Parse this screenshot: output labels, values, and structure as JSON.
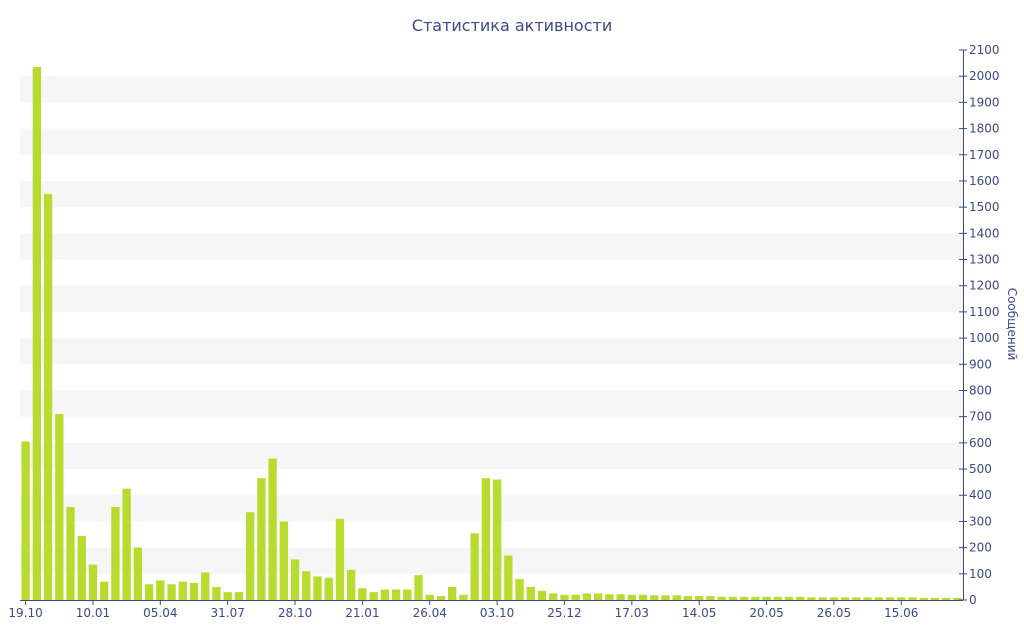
{
  "chart_data": {
    "type": "bar",
    "title": "Статистика активности",
    "xlabel": "",
    "ylabel": "Сообщений",
    "ylim": [
      0,
      2100
    ],
    "y_ticks": [
      0,
      100,
      200,
      300,
      400,
      500,
      600,
      700,
      800,
      900,
      1000,
      1100,
      1200,
      1300,
      1400,
      1500,
      1600,
      1700,
      1800,
      1900,
      2000,
      2100
    ],
    "x_tick_labels": [
      "19.10",
      "10.01",
      "05.04",
      "31.07",
      "28.10",
      "21.01",
      "26.04",
      "03.10",
      "25.12",
      "17.03",
      "14.05",
      "20.05",
      "26.05",
      "15.06"
    ],
    "x_tick_bar_index": [
      0,
      6,
      12,
      18,
      24,
      30,
      36,
      42,
      48,
      54,
      60,
      66,
      72,
      78
    ],
    "grid": "alternating horizontal bands",
    "legend": "none",
    "colors": {
      "bar": "#b8db2f",
      "band": "#f6f6f6",
      "axis": "#3a4a86",
      "text": "#3a4a86"
    },
    "values": [
      605,
      2035,
      1550,
      710,
      355,
      245,
      135,
      70,
      355,
      425,
      200,
      60,
      75,
      60,
      70,
      65,
      105,
      50,
      30,
      30,
      335,
      465,
      540,
      300,
      155,
      110,
      90,
      85,
      310,
      115,
      45,
      30,
      40,
      40,
      40,
      95,
      20,
      15,
      50,
      20,
      255,
      465,
      460,
      170,
      80,
      50,
      35,
      25,
      20,
      20,
      25,
      25,
      22,
      22,
      20,
      20,
      18,
      18,
      18,
      15,
      15,
      15,
      12,
      12,
      12,
      12,
      12,
      12,
      12,
      12,
      10,
      10,
      10,
      10,
      10,
      10,
      10,
      10,
      10,
      10,
      8,
      8,
      8,
      8
    ]
  }
}
